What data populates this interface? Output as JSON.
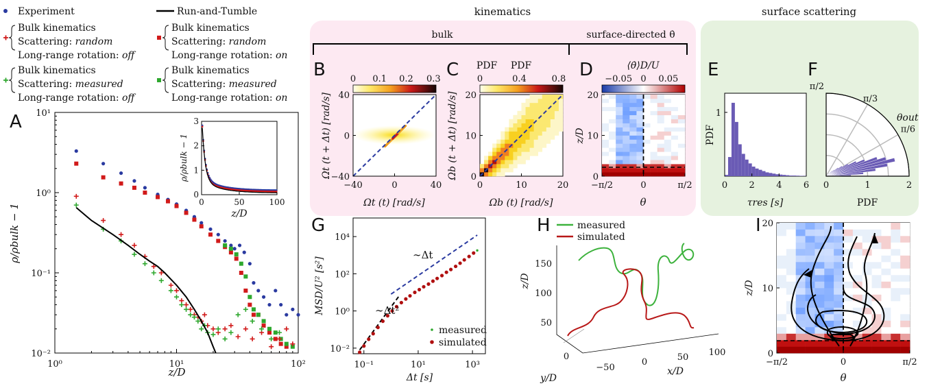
{
  "legend": {
    "experiment": "Experiment",
    "run_and_tumble": "Run-and-Tumble",
    "bulk": "Bulk kinematics",
    "scattering_prefix": "Scattering: ",
    "random": "random",
    "measured": "measured",
    "lr_prefix": "Long-range rotation: ",
    "off": "off",
    "on": "on",
    "colors": {
      "experiment": "#2a3aa0",
      "random": "#d11a1a",
      "measured": "#2ea82e",
      "sim_line": "#000000"
    }
  },
  "headers": {
    "kinematics": "kinematics",
    "surface_scattering": "surface scattering",
    "bulk": "bulk",
    "surface_directed": "surface-directed θ̇"
  },
  "panel_letters": [
    "A",
    "B",
    "C",
    "D",
    "E",
    "F",
    "G",
    "H",
    "I"
  ],
  "chart_data": [
    {
      "id": "A",
      "type": "scatter",
      "xlabel": "z/D",
      "ylabel": "ρ/ρbulk − 1",
      "xscale": "log",
      "yscale": "log",
      "xlim": [
        1,
        100
      ],
      "ylim": [
        0.01,
        10
      ],
      "xticks": [
        "10⁰",
        "10¹",
        "10²"
      ],
      "yticks": [
        "10⁻²",
        "10⁻¹",
        "10⁰",
        "10¹"
      ],
      "series": [
        {
          "name": "Experiment",
          "marker": "dot",
          "color": "#2a3aa0",
          "x": [
            1.5,
            2.5,
            3.5,
            4.5,
            5.5,
            7,
            8.5,
            10,
            12,
            14,
            16,
            19,
            22,
            25,
            28,
            30,
            33,
            36,
            40,
            43,
            47,
            52,
            58,
            65,
            72,
            80,
            90,
            100
          ],
          "y": [
            3.3,
            2.3,
            1.75,
            1.4,
            1.15,
            0.95,
            0.82,
            0.72,
            0.6,
            0.5,
            0.42,
            0.35,
            0.3,
            0.25,
            0.22,
            0.2,
            0.22,
            0.18,
            0.13,
            0.075,
            0.06,
            0.05,
            0.04,
            0.06,
            0.04,
            0.03,
            0.035,
            0.03
          ]
        },
        {
          "name": "Random scattering, long-range rotation on",
          "marker": "square",
          "color": "#d11a1a",
          "x": [
            1.5,
            2.5,
            3.5,
            4.5,
            5.5,
            7,
            8.5,
            10,
            12,
            14,
            16,
            19,
            22,
            25,
            28,
            31,
            34,
            37,
            40,
            43,
            47,
            52,
            58,
            65,
            72,
            80
          ],
          "y": [
            2.3,
            1.55,
            1.3,
            1.15,
            1.0,
            0.88,
            0.78,
            0.68,
            0.56,
            0.46,
            0.38,
            0.3,
            0.25,
            0.21,
            0.18,
            0.15,
            0.1,
            0.06,
            0.04,
            0.03,
            0.03,
            0.022,
            0.018,
            0.015,
            0.013,
            0.012
          ]
        },
        {
          "name": "Measured scattering, long-range rotation on",
          "marker": "square",
          "color": "#2ea82e",
          "x": [
            25,
            28,
            31,
            34,
            37,
            40,
            43,
            47,
            52,
            58,
            65,
            72,
            80,
            90
          ],
          "y": [
            0.22,
            0.2,
            0.17,
            0.13,
            0.09,
            0.05,
            0.035,
            0.03,
            0.025,
            0.02,
            0.018,
            0.015,
            0.013,
            0.012
          ]
        },
        {
          "name": "Random scattering, long-range rotation off",
          "marker": "plus",
          "color": "#d11a1a",
          "x": [
            1.5,
            2.5,
            3.5,
            4.5,
            5.5,
            6.5,
            7.5,
            9,
            10,
            11,
            12,
            13,
            14,
            15,
            16,
            17,
            18,
            20,
            22,
            25,
            28,
            32,
            37,
            42,
            50,
            60,
            70,
            80,
            90
          ],
          "y": [
            0.9,
            0.45,
            0.3,
            0.22,
            0.16,
            0.12,
            0.1,
            0.07,
            0.06,
            0.045,
            0.04,
            0.035,
            0.03,
            0.028,
            0.025,
            0.03,
            0.022,
            0.02,
            0.018,
            0.02,
            0.022,
            0.016,
            0.02,
            0.015,
            0.018,
            0.012,
            0.015,
            0.02,
            0.013
          ]
        },
        {
          "name": "Measured scattering, long-range rotation off",
          "marker": "plus",
          "color": "#2ea82e",
          "x": [
            1.5,
            2.5,
            3.5,
            4.5,
            5.5,
            6.5,
            7.5,
            9,
            10,
            11,
            12,
            13,
            14,
            15,
            16,
            17,
            18,
            20,
            22,
            25,
            28,
            32,
            37,
            42,
            50,
            60,
            70
          ],
          "y": [
            0.7,
            0.35,
            0.25,
            0.17,
            0.13,
            0.1,
            0.08,
            0.06,
            0.05,
            0.04,
            0.035,
            0.03,
            0.028,
            0.025,
            0.02,
            0.022,
            0.018,
            0.017,
            0.02,
            0.015,
            0.018,
            0.03,
            0.035,
            0.025,
            0.02,
            0.015,
            0.018
          ]
        },
        {
          "name": "Run-and-Tumble",
          "marker": "line",
          "color": "#000000",
          "x": [
            1.5,
            2,
            3,
            4,
            5,
            6,
            7,
            8,
            10,
            12,
            14,
            16,
            18,
            20,
            21
          ],
          "y": [
            0.65,
            0.45,
            0.3,
            0.22,
            0.17,
            0.14,
            0.12,
            0.1,
            0.07,
            0.05,
            0.035,
            0.025,
            0.018,
            0.012,
            0.01
          ]
        }
      ],
      "inset": {
        "xlabel": "z/D",
        "ylabel": "ρ/ρbulk − 1",
        "xlim": [
          0,
          100
        ],
        "ylim": [
          0,
          3
        ],
        "xticks": [
          "0",
          "50",
          "100"
        ],
        "yticks": [
          "0",
          "1",
          "2",
          "3"
        ]
      }
    },
    {
      "id": "B",
      "type": "heatmap",
      "colorbar_label": "PDF",
      "colorbar_ticks": [
        "0",
        "0.1",
        "0.2",
        "0.3"
      ],
      "xlabel": "Ωt (t)  [rad/s]",
      "ylabel": "Ωt (t + Δt)  [rad/s]",
      "xlim": [
        -40,
        40
      ],
      "ylim": [
        -40,
        40
      ],
      "xticks": [
        "−40",
        "0",
        "40"
      ],
      "yticks": [
        "−40",
        "0",
        "40"
      ]
    },
    {
      "id": "C",
      "type": "heatmap",
      "colorbar_label": "PDF",
      "colorbar_ticks": [
        "0",
        "0.4",
        "0.8"
      ],
      "xlabel": "Ωb (t)  [rad/s]",
      "ylabel": "Ωb (t + Δt)  [rad/s]",
      "xlim": [
        0,
        20
      ],
      "ylim": [
        0,
        20
      ],
      "xticks": [
        "0",
        "10",
        "20"
      ],
      "yticks": [
        "0",
        "10",
        "20"
      ]
    },
    {
      "id": "D",
      "type": "heatmap",
      "colorbar_label": "⟨θ̇⟩D/U",
      "colorbar_ticks": [
        "−0.05",
        "0",
        "0.05"
      ],
      "xlabel": "θ",
      "ylabel": "z/D",
      "xlim": [
        -1.5708,
        1.5708
      ],
      "ylim": [
        0,
        20
      ],
      "xticks": [
        "−π/2",
        "0",
        "π/2"
      ],
      "yticks": [
        "0",
        "10",
        "20"
      ]
    },
    {
      "id": "E",
      "type": "bar",
      "xlabel": "τres  [s]",
      "ylabel": "PDF",
      "xlim": [
        0,
        6
      ],
      "ylim": [
        0,
        1.3
      ],
      "xticks": [
        "0",
        "2",
        "4",
        "6"
      ],
      "yticks": [
        "1"
      ],
      "bin_width": 0.25,
      "values": [
        0.02,
        0.3,
        1.15,
        0.85,
        0.5,
        0.35,
        0.26,
        0.2,
        0.15,
        0.12,
        0.1,
        0.08,
        0.06,
        0.05,
        0.04,
        0.03,
        0.025,
        0.02,
        0.015,
        0.01,
        0.01,
        0.008,
        0.005,
        0.004
      ]
    },
    {
      "id": "F",
      "type": "bar",
      "polar": true,
      "xlabel": "PDF",
      "rlim": [
        0,
        2
      ],
      "rticks": [
        "0",
        "1",
        "2"
      ],
      "angle_ticks": [
        "π/2",
        "π/3",
        "π/6"
      ],
      "angle_label": "θout",
      "bin_width_deg": 3,
      "values": [
        0.6,
        0.9,
        1.2,
        1.5,
        1.7,
        1.5,
        1.3,
        1.0,
        0.8,
        0.6,
        0.45,
        0.35,
        0.25,
        0.2,
        0.15,
        0.1,
        0.08,
        0.05
      ]
    },
    {
      "id": "G",
      "type": "scatter",
      "xlabel": "Δt  [s]",
      "ylabel": "MSD/U²  [s²]",
      "xscale": "log",
      "yscale": "log",
      "xlim": [
        0.04,
        3000
      ],
      "ylim": [
        0.005,
        100000
      ],
      "xticks": [
        "10⁻¹",
        "10¹",
        "10³"
      ],
      "yticks": [
        "10⁻²",
        "10⁰",
        "10²",
        "10⁴"
      ],
      "annotations": [
        "∼Δt²",
        "∼Δt"
      ],
      "series": [
        {
          "name": "measured",
          "color": "#2ea82e",
          "x": [
            0.07,
            0.1,
            0.15,
            0.22,
            0.33,
            0.5,
            0.75,
            1.1,
            1.6,
            2.4,
            3.5,
            5,
            7.5,
            11,
            16,
            24,
            35,
            50,
            75,
            110,
            160,
            240,
            350,
            500,
            750,
            1100,
            1500
          ],
          "y": [
            0.006,
            0.013,
            0.03,
            0.06,
            0.13,
            0.28,
            0.55,
            1.0,
            1.7,
            2.8,
            4.4,
            6.5,
            10,
            14,
            20,
            28,
            40,
            56,
            80,
            120,
            170,
            250,
            370,
            560,
            850,
            1300,
            1800
          ]
        },
        {
          "name": "simulated",
          "color": "#b01010",
          "x": [
            0.07,
            0.1,
            0.15,
            0.22,
            0.33,
            0.5,
            0.75,
            1.1,
            1.6,
            2.4,
            3.5,
            5,
            7.5,
            11,
            16,
            24,
            35,
            50,
            75,
            110,
            160,
            240,
            350,
            500,
            750,
            1100
          ],
          "y": [
            0.006,
            0.013,
            0.03,
            0.06,
            0.13,
            0.28,
            0.55,
            1.0,
            1.7,
            2.8,
            4.4,
            6.5,
            10,
            14,
            20,
            28,
            40,
            56,
            80,
            120,
            170,
            250,
            370,
            560,
            850,
            1300
          ]
        }
      ]
    },
    {
      "id": "H",
      "type": "line",
      "xlabel": "x/D",
      "ylabel": "z/D",
      "zlabel": "y/D",
      "xticks": [
        "−50",
        "0",
        "50",
        "100"
      ],
      "zticks": [
        "50",
        "100",
        "150"
      ],
      "yticks": [
        "0"
      ],
      "series": [
        {
          "name": "measured",
          "color": "#3cb23c"
        },
        {
          "name": "simulated",
          "color": "#b81818"
        }
      ]
    },
    {
      "id": "I",
      "type": "heatmap",
      "xlabel": "θ",
      "ylabel": "z/D",
      "xlim": [
        -1.5708,
        1.5708
      ],
      "ylim": [
        0,
        20
      ],
      "xticks": [
        "−π/2",
        "0",
        "π/2"
      ],
      "yticks": [
        "0",
        "10",
        "20"
      ]
    }
  ]
}
